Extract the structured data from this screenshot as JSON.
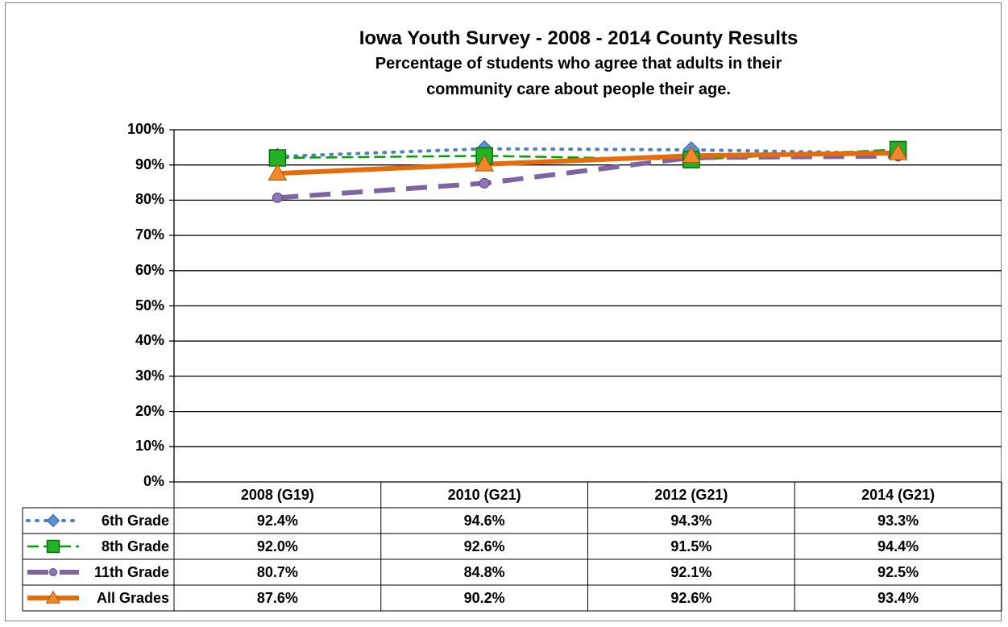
{
  "chart_data": {
    "type": "line",
    "title": "Iowa Youth Survey - 2008 - 2014 County Results",
    "subtitle_lines": [
      "Percentage of students who agree that adults in their",
      "community care about people their age."
    ],
    "categories": [
      "2008 (G19)",
      "2010 (G21)",
      "2012 (G21)",
      "2014 (G21)"
    ],
    "ylim": [
      0,
      100
    ],
    "yticks": [
      "0%",
      "10%",
      "20%",
      "30%",
      "40%",
      "50%",
      "60%",
      "70%",
      "80%",
      "90%",
      "100%"
    ],
    "grid": true,
    "legend": "data-table",
    "series": [
      {
        "name": "6th Grade",
        "values": [
          92.4,
          94.6,
          94.3,
          93.3
        ],
        "labels": [
          "92.4%",
          "94.6%",
          "94.3%",
          "93.3%"
        ],
        "color": "#4f81bd",
        "line": "dotted",
        "marker": "diamond"
      },
      {
        "name": "8th Grade",
        "values": [
          92.0,
          92.6,
          91.5,
          94.4
        ],
        "labels": [
          "92.0%",
          "92.6%",
          "91.5%",
          "94.4%"
        ],
        "color": "#00a000",
        "line": "dashed",
        "marker": "square"
      },
      {
        "name": "11th Grade",
        "values": [
          80.7,
          84.8,
          92.1,
          92.5
        ],
        "labels": [
          "80.7%",
          "84.8%",
          "92.1%",
          "92.5%"
        ],
        "color": "#8064a2",
        "line": "long-dash",
        "marker": "circle"
      },
      {
        "name": "All Grades",
        "values": [
          87.6,
          90.2,
          92.6,
          93.4
        ],
        "labels": [
          "87.6%",
          "90.2%",
          "92.6%",
          "93.4%"
        ],
        "color": "#e46c0a",
        "line": "solid",
        "marker": "triangle"
      }
    ]
  }
}
